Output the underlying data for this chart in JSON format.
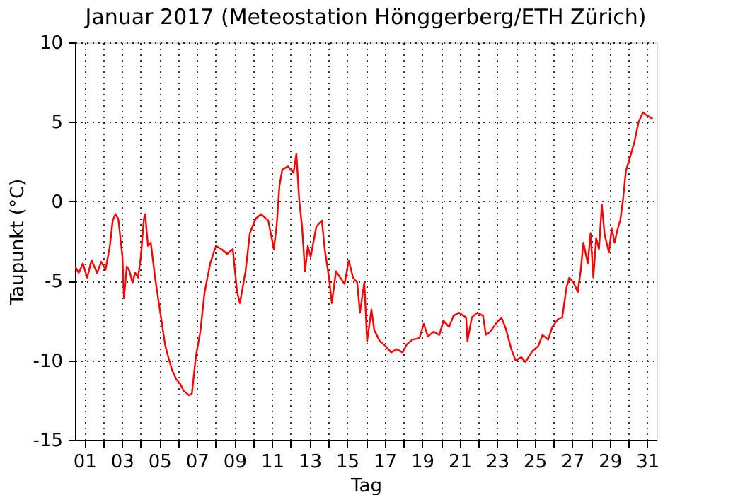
{
  "chart_data": {
    "type": "line",
    "title": "Januar 2017  (Meteostation Hönggerberg/ETH Zürich)",
    "xlabel": "Tag",
    "ylabel": "Taupunkt (°C)",
    "xlim": [
      0.5,
      31.5
    ],
    "ylim": [
      -15,
      10
    ],
    "yticks": [
      -15,
      -10,
      -5,
      0,
      5,
      10
    ],
    "xticks": [
      {
        "value": 1,
        "label": "01"
      },
      {
        "value": 2,
        "label": null
      },
      {
        "value": 3,
        "label": "03"
      },
      {
        "value": 4,
        "label": null
      },
      {
        "value": 5,
        "label": "05"
      },
      {
        "value": 6,
        "label": null
      },
      {
        "value": 7,
        "label": "07"
      },
      {
        "value": 8,
        "label": null
      },
      {
        "value": 9,
        "label": "09"
      },
      {
        "value": 10,
        "label": null
      },
      {
        "value": 11,
        "label": "11"
      },
      {
        "value": 12,
        "label": null
      },
      {
        "value": 13,
        "label": "13"
      },
      {
        "value": 14,
        "label": null
      },
      {
        "value": 15,
        "label": "15"
      },
      {
        "value": 16,
        "label": null
      },
      {
        "value": 17,
        "label": "17"
      },
      {
        "value": 18,
        "label": null
      },
      {
        "value": 19,
        "label": "19"
      },
      {
        "value": 20,
        "label": null
      },
      {
        "value": 21,
        "label": "21"
      },
      {
        "value": 22,
        "label": null
      },
      {
        "value": 23,
        "label": "23"
      },
      {
        "value": 24,
        "label": null
      },
      {
        "value": 25,
        "label": "25"
      },
      {
        "value": 26,
        "label": null
      },
      {
        "value": 27,
        "label": "27"
      },
      {
        "value": 28,
        "label": null
      },
      {
        "value": 29,
        "label": "29"
      },
      {
        "value": 30,
        "label": null
      },
      {
        "value": 31,
        "label": "31"
      }
    ],
    "grid": true,
    "series": [
      {
        "color": "#ff0000",
        "x": [
          0.5,
          0.7,
          0.92,
          1.15,
          1.38,
          1.68,
          1.9,
          2.13,
          2.36,
          2.51,
          2.66,
          2.81,
          3.03,
          3.11,
          3.26,
          3.41,
          3.56,
          3.71,
          3.86,
          4.01,
          4.17,
          4.24,
          4.39,
          4.54,
          4.77,
          4.92,
          5.3,
          5.45,
          5.67,
          5.9,
          6.12,
          6.28,
          6.58,
          6.73,
          6.95,
          7.18,
          7.41,
          7.71,
          8.01,
          8.31,
          8.61,
          8.91,
          9.14,
          9.29,
          9.59,
          9.82,
          10.12,
          10.42,
          10.8,
          10.95,
          11.1,
          11.25,
          11.4,
          11.55,
          11.85,
          12.15,
          12.3,
          12.45,
          12.61,
          12.76,
          12.91,
          13.06,
          13.36,
          13.66,
          13.81,
          14.04,
          14.19,
          14.41,
          14.64,
          14.87,
          15.09,
          15.32,
          15.54,
          15.69,
          15.92,
          16.07,
          16.3,
          16.45,
          16.75,
          17.05,
          17.35,
          17.65,
          17.96,
          18.18,
          18.48,
          18.86,
          19.09,
          19.31,
          19.61,
          19.92,
          20.14,
          20.44,
          20.67,
          20.97,
          21.35,
          21.42,
          21.65,
          21.95,
          22.25,
          22.4,
          22.63,
          22.93,
          23.23,
          23.46,
          23.76,
          23.98,
          24.29,
          24.51,
          24.89,
          25.19,
          25.42,
          25.72,
          25.94,
          26.25,
          26.47,
          26.7,
          26.85,
          27.07,
          27.3,
          27.45,
          27.6,
          27.83,
          27.98,
          28.13,
          28.28,
          28.43,
          28.58,
          28.73,
          28.96,
          29.11,
          29.26,
          29.41,
          29.56,
          29.71,
          29.86,
          30.09,
          30.31,
          30.54,
          30.77,
          30.99,
          31.29
        ],
        "values": [
          -4.1,
          -4.5,
          -3.9,
          -4.8,
          -3.7,
          -4.5,
          -3.8,
          -4.3,
          -2.8,
          -1.2,
          -0.8,
          -1.1,
          -3.5,
          -6.1,
          -4.1,
          -4.4,
          -5.1,
          -4.5,
          -4.8,
          -3.5,
          -1.1,
          -0.8,
          -2.8,
          -2.6,
          -4.8,
          -6.0,
          -9.0,
          -9.7,
          -10.6,
          -11.2,
          -11.5,
          -11.9,
          -12.2,
          -12.1,
          -9.7,
          -8.2,
          -5.7,
          -3.9,
          -2.8,
          -3.0,
          -3.3,
          -3.0,
          -5.7,
          -6.4,
          -4.4,
          -2.0,
          -1.1,
          -0.8,
          -1.2,
          -2.1,
          -3.0,
          -1.5,
          1.0,
          2.0,
          2.2,
          1.8,
          3.0,
          0.1,
          -1.7,
          -4.4,
          -2.8,
          -3.5,
          -1.6,
          -1.2,
          -3.0,
          -4.8,
          -6.4,
          -4.4,
          -4.8,
          -5.2,
          -3.7,
          -4.8,
          -5.1,
          -7.0,
          -5.1,
          -8.8,
          -6.8,
          -8.1,
          -8.8,
          -9.1,
          -9.5,
          -9.3,
          -9.5,
          -9.0,
          -8.7,
          -8.6,
          -7.7,
          -8.5,
          -8.2,
          -8.4,
          -7.5,
          -7.9,
          -7.2,
          -7.0,
          -7.3,
          -8.8,
          -7.3,
          -7.0,
          -7.2,
          -8.4,
          -8.2,
          -7.7,
          -7.3,
          -8.0,
          -9.3,
          -10.0,
          -9.8,
          -10.1,
          -9.4,
          -9.1,
          -8.4,
          -8.7,
          -7.9,
          -7.4,
          -7.3,
          -5.4,
          -4.8,
          -5.1,
          -5.7,
          -4.4,
          -2.6,
          -3.9,
          -2.0,
          -4.8,
          -2.3,
          -3.0,
          -0.2,
          -2.1,
          -3.2,
          -1.7,
          -2.6,
          -1.8,
          -1.2,
          0.1,
          1.9,
          2.8,
          3.7,
          5.0,
          5.6,
          5.4,
          5.2
        ]
      }
    ]
  }
}
